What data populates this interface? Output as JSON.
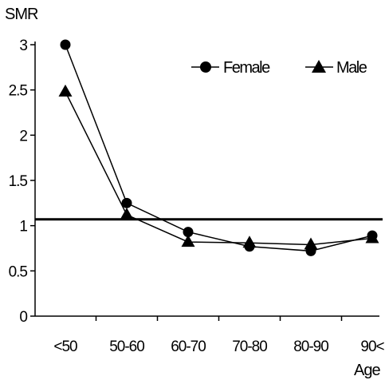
{
  "chart_data": {
    "type": "line",
    "title": "",
    "ylabel": "SMR",
    "xlabel": "Age",
    "categories": [
      "<50",
      "50-60",
      "60-70",
      "70-80",
      "80-90",
      "90<"
    ],
    "ylim": [
      0,
      3
    ],
    "yticks": [
      0,
      0.5,
      1,
      1.5,
      2,
      2.5,
      3
    ],
    "ytick_labels": [
      "0",
      "0.5",
      "1",
      "1.5",
      "2",
      "2.5",
      "3"
    ],
    "reference_line": 1.07,
    "grid": false,
    "legend_position": "top-right",
    "series": [
      {
        "name": "Female",
        "marker": "circle",
        "values": [
          3.0,
          1.25,
          0.93,
          0.77,
          0.72,
          0.89
        ]
      },
      {
        "name": "Male",
        "marker": "triangle",
        "values": [
          2.48,
          1.12,
          0.82,
          0.81,
          0.79,
          0.86
        ]
      }
    ]
  }
}
